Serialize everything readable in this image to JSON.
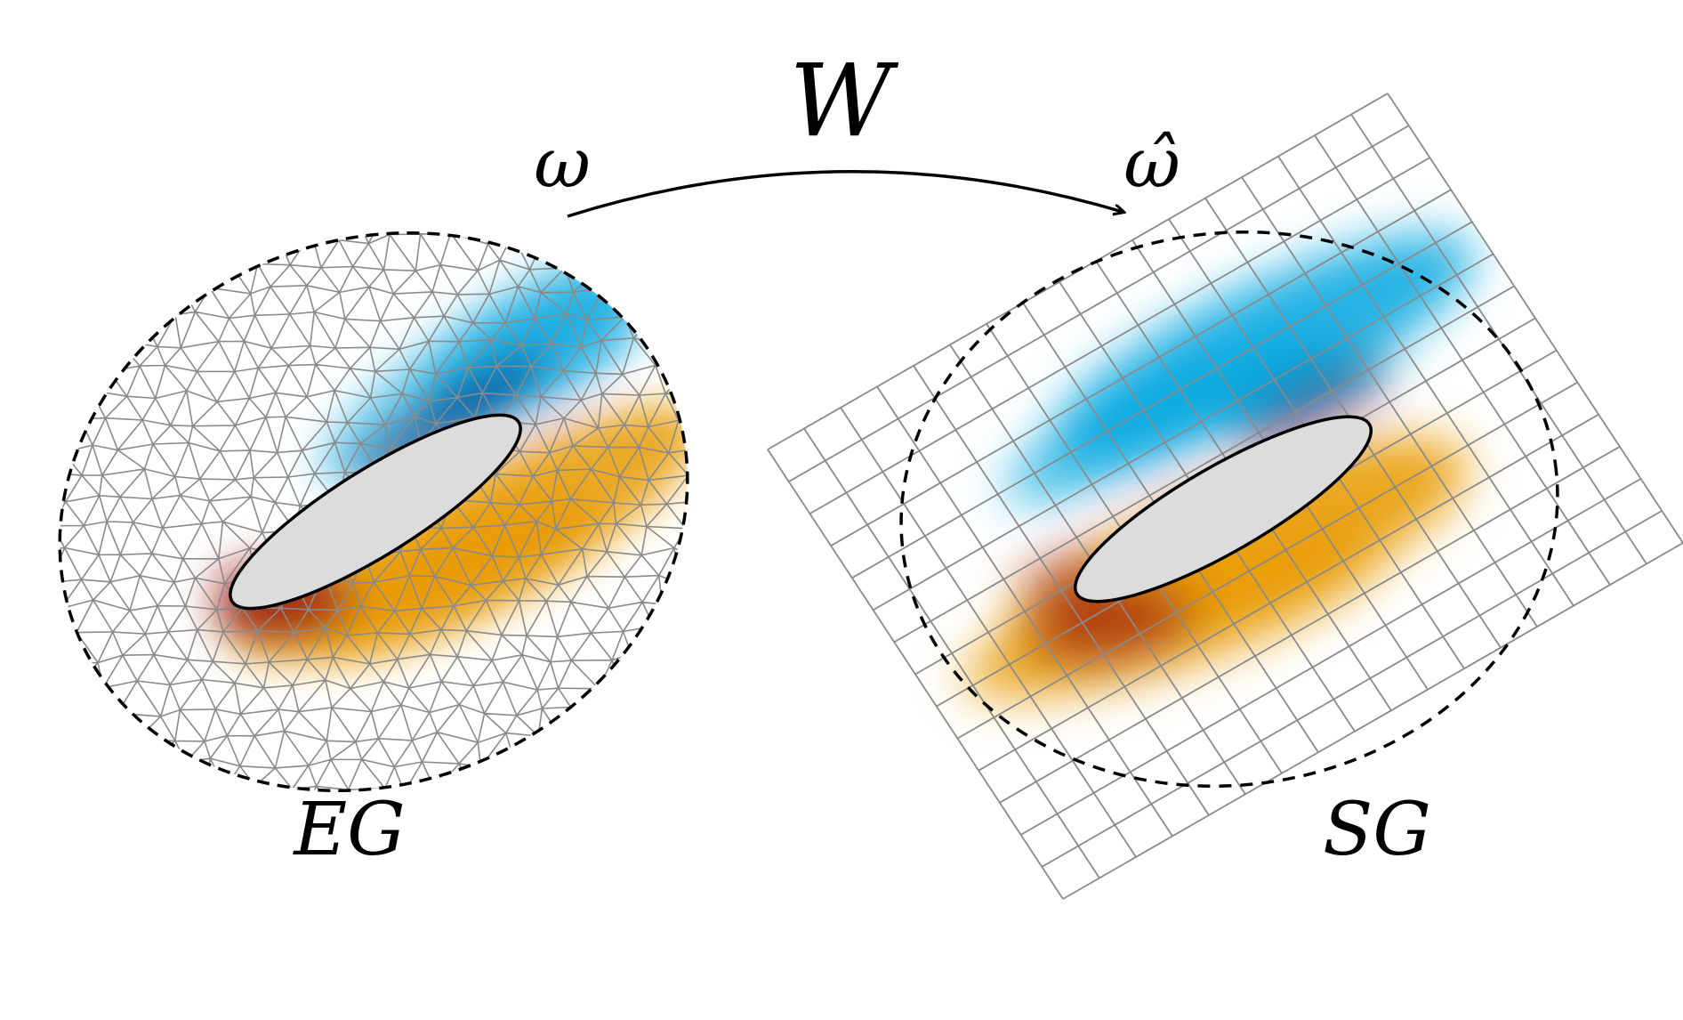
{
  "labels": {
    "map": "W",
    "source": "ω",
    "target": "ω̂",
    "left_grid": "EG",
    "right_grid": "SG"
  },
  "colors": {
    "positive": "#e89a00",
    "positive_peak": "#9c1a10",
    "negative": "#00a6e0",
    "negative_peak": "#001f6e",
    "mesh_line": "#8a8a8a",
    "body_fill": "#dcdcdc",
    "outline": "#000000"
  },
  "icons": {
    "arrow": "curved-arrow-icon"
  }
}
